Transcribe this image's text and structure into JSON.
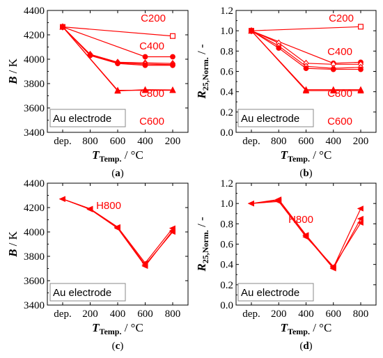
{
  "colors": {
    "series": "#ff0000",
    "axis": "#000000",
    "box": "#888888"
  },
  "chart_data": [
    {
      "panel": "a",
      "type": "line",
      "caption": "(a)",
      "categories": [
        "dep.",
        "800",
        "600",
        "400",
        "200"
      ],
      "ylabel_main": "B",
      "ylabel_unit": " / K",
      "xlabel_main": "T",
      "xlabel_sub": "Temp.",
      "xlabel_unit": " / °C",
      "ylim": [
        3400,
        4400
      ],
      "yticks": [
        "3400",
        "3600",
        "3800",
        "4000",
        "4200",
        "4400"
      ],
      "legend_box": "Au electrode",
      "annotations": [
        "C200",
        "C400",
        "C800",
        "C600"
      ],
      "series": [
        {
          "name": "C200",
          "marker": "square-open",
          "values": [
            4265,
            null,
            null,
            null,
            4190
          ]
        },
        {
          "name": "C400",
          "marker": "circle-filled",
          "values": [
            4265,
            null,
            null,
            4020,
            4020
          ]
        },
        {
          "name": "",
          "marker": "diamond-open",
          "values": [
            4265,
            4040,
            3975,
            3970,
            3965
          ]
        },
        {
          "name": "",
          "marker": "diamond-open",
          "values": [
            4265,
            4035,
            3970,
            3960,
            3955
          ]
        },
        {
          "name": "",
          "marker": "circle-filled",
          "values": [
            4265,
            4030,
            3965,
            3950,
            3950
          ]
        },
        {
          "name": "C600",
          "marker": "triangle-filled",
          "values": [
            4265,
            null,
            3745,
            3745,
            3745
          ]
        },
        {
          "name": "",
          "marker": "triangle-filled",
          "values": [
            4265,
            null,
            3740,
            3750,
            3748
          ]
        }
      ]
    },
    {
      "panel": "b",
      "type": "line",
      "caption": "(b)",
      "categories": [
        "dep.",
        "800",
        "600",
        "400",
        "200"
      ],
      "ylabel_main": "R",
      "ylabel_sub": "25,Norm.",
      "ylabel_unit": " / -",
      "xlabel_main": "T",
      "xlabel_sub": "Temp.",
      "xlabel_unit": " / °C",
      "ylim": [
        0.0,
        1.2
      ],
      "yticks": [
        "0.0",
        "0.2",
        "0.4",
        "0.6",
        "0.8",
        "1.0",
        "1.2"
      ],
      "legend_box": "Au electrode",
      "annotations": [
        "C200",
        "C400",
        "C800",
        "C600"
      ],
      "series": [
        {
          "name": "C200",
          "marker": "square-open",
          "values": [
            1.0,
            null,
            null,
            null,
            1.04
          ]
        },
        {
          "name": "C400",
          "marker": "circle-filled",
          "values": [
            1.0,
            null,
            null,
            0.68,
            0.69
          ]
        },
        {
          "name": "",
          "marker": "diamond-open",
          "values": [
            1.0,
            0.88,
            0.68,
            0.67,
            0.67
          ]
        },
        {
          "name": "",
          "marker": "diamond-open",
          "values": [
            1.0,
            0.85,
            0.65,
            0.63,
            0.64
          ]
        },
        {
          "name": "",
          "marker": "circle-filled",
          "values": [
            1.0,
            0.83,
            0.63,
            0.62,
            0.62
          ]
        },
        {
          "name": "C600",
          "marker": "triangle-filled",
          "values": [
            1.0,
            null,
            0.42,
            0.42,
            0.42
          ]
        },
        {
          "name": "",
          "marker": "triangle-filled",
          "values": [
            1.0,
            null,
            0.41,
            0.41,
            0.41
          ]
        }
      ]
    },
    {
      "panel": "c",
      "type": "line",
      "caption": "(c)",
      "categories": [
        "dep.",
        "200",
        "400",
        "600",
        "800"
      ],
      "ylabel_main": "B",
      "ylabel_unit": " / K",
      "xlabel_main": "T",
      "xlabel_sub": "Temp.",
      "xlabel_unit": " / °C",
      "ylim": [
        3400,
        4400
      ],
      "yticks": [
        "3400",
        "3600",
        "3800",
        "4000",
        "4200",
        "4400"
      ],
      "legend_box": "Au electrode",
      "annotations": [
        "H800"
      ],
      "series": [
        {
          "name": "H800",
          "marker": "triangle-left",
          "values": [
            4270,
            4190,
            4035,
            3730,
            4000
          ]
        },
        {
          "name": "",
          "marker": "triangle-left",
          "values": [
            4270,
            4190,
            4040,
            3745,
            4030
          ]
        },
        {
          "name": "",
          "marker": "triangle-left",
          "values": [
            4270,
            4185,
            4030,
            3720,
            4010
          ]
        }
      ]
    },
    {
      "panel": "d",
      "type": "line",
      "caption": "(d)",
      "categories": [
        "dep.",
        "200",
        "400",
        "600",
        "800"
      ],
      "ylabel_main": "R",
      "ylabel_sub": "25,Norm.",
      "ylabel_unit": " / -",
      "xlabel_main": "T",
      "xlabel_sub": "Temp.",
      "xlabel_unit": " / °C",
      "ylim": [
        0.0,
        1.2
      ],
      "yticks": [
        "0.0",
        "0.2",
        "0.4",
        "0.6",
        "0.8",
        "1.0",
        "1.2"
      ],
      "legend_box": "Au electrode",
      "annotations": [
        "H800"
      ],
      "series": [
        {
          "name": "H800",
          "marker": "triangle-left",
          "values": [
            1.0,
            1.04,
            0.69,
            0.37,
            0.95
          ]
        },
        {
          "name": "",
          "marker": "triangle-left",
          "values": [
            1.0,
            1.03,
            0.68,
            0.36,
            0.85
          ]
        },
        {
          "name": "",
          "marker": "triangle-left",
          "values": [
            1.0,
            1.02,
            0.67,
            0.38,
            0.81
          ]
        }
      ]
    }
  ]
}
